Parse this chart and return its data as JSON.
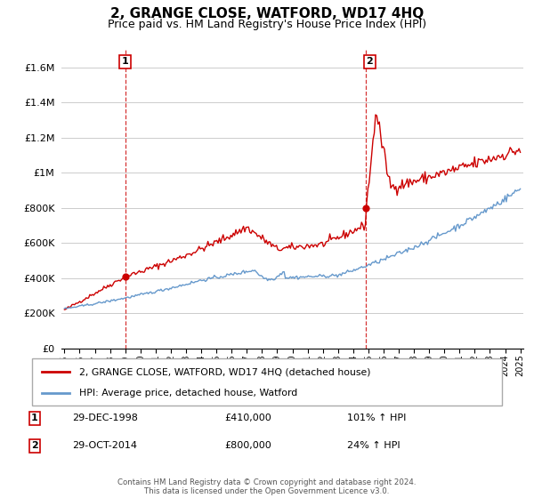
{
  "title": "2, GRANGE CLOSE, WATFORD, WD17 4HQ",
  "subtitle": "Price paid vs. HM Land Registry's House Price Index (HPI)",
  "xlim": [
    1994.8,
    2025.2
  ],
  "ylim": [
    0,
    1700000
  ],
  "yticks": [
    0,
    200000,
    400000,
    600000,
    800000,
    1000000,
    1200000,
    1400000,
    1600000
  ],
  "ytick_labels": [
    "£0",
    "£200K",
    "£400K",
    "£600K",
    "£800K",
    "£1M",
    "£1.2M",
    "£1.4M",
    "£1.6M"
  ],
  "sale1_x": 1998.99,
  "sale1_y": 410000,
  "sale1_label": "1",
  "sale1_date": "29-DEC-1998",
  "sale1_price": "£410,000",
  "sale1_hpi": "101% ↑ HPI",
  "sale2_x": 2014.83,
  "sale2_y": 800000,
  "sale2_label": "2",
  "sale2_date": "29-OCT-2014",
  "sale2_price": "£800,000",
  "sale2_hpi": "24% ↑ HPI",
  "vline1_x": 1998.99,
  "vline2_x": 2014.83,
  "line_color_red": "#cc0000",
  "line_color_blue": "#6699cc",
  "background_color": "#ffffff",
  "grid_color": "#cccccc",
  "legend_line1": "2, GRANGE CLOSE, WATFORD, WD17 4HQ (detached house)",
  "legend_line2": "HPI: Average price, detached house, Watford",
  "footer": "Contains HM Land Registry data © Crown copyright and database right 2024.\nThis data is licensed under the Open Government Licence v3.0.",
  "title_fontsize": 11,
  "subtitle_fontsize": 9
}
